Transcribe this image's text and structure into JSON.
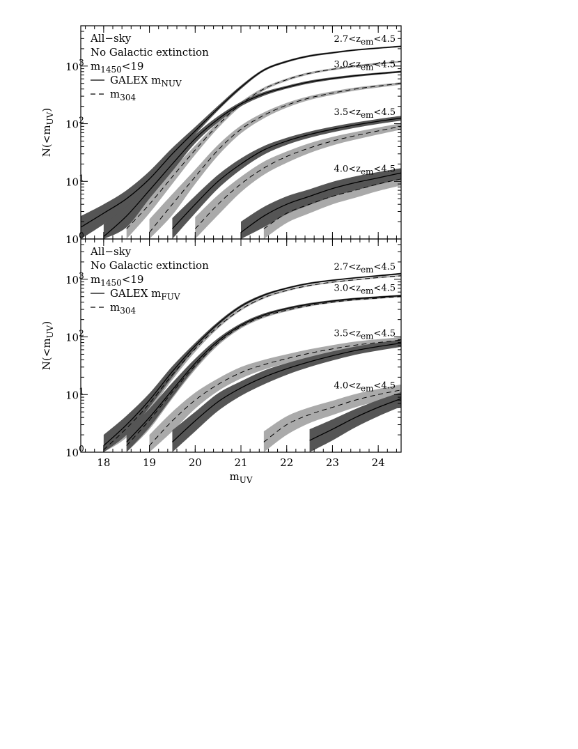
{
  "chart_data": [
    {
      "type": "line",
      "log_y": true,
      "xlim": [
        17.5,
        24.5
      ],
      "ylim": [
        1,
        5000
      ],
      "xticks": [
        18,
        19,
        20,
        21,
        22,
        23,
        24
      ],
      "show_xtick_labels": false,
      "xminor_step": 0.2,
      "yticks": [
        {
          "value": 1,
          "label": "10",
          "exp": "0"
        },
        {
          "value": 10,
          "label": "10",
          "exp": "1"
        },
        {
          "value": 100,
          "label": "10",
          "exp": "2"
        },
        {
          "value": 1000,
          "label": "10",
          "exp": "3"
        }
      ],
      "ylabel": {
        "text": "N(<m",
        "sub": "UV",
        "post": ")"
      },
      "annotations": [
        "All−sky",
        "No Galactic extinction"
      ],
      "cut": {
        "text": "m",
        "sub": "1450",
        "post": "<19"
      },
      "legend": [
        {
          "text": "GALEX m",
          "sub": "NUV",
          "style": "solid"
        },
        {
          "text": "m",
          "sub": "304",
          "style": "dashed"
        }
      ],
      "bins": [
        {
          "pre": "2.7<z",
          "sub": "em",
          "post": "<4.5"
        },
        {
          "pre": "3.0<z",
          "sub": "em",
          "post": "<4.5"
        },
        {
          "pre": "3.5<z",
          "sub": "em",
          "post": "<4.5"
        },
        {
          "pre": "4.0<z",
          "sub": "em",
          "post": "<4.5"
        }
      ],
      "x": [
        17.5,
        18,
        18.5,
        19,
        19.5,
        20,
        20.5,
        21,
        21.5,
        22,
        22.5,
        23,
        23.5,
        24,
        24.5
      ],
      "series": [
        {
          "bin": 0,
          "style": "solid",
          "color": "#000000",
          "band_color": "#555555",
          "values": [
            1.6,
            2.8,
            5,
            11,
            30,
            75,
            185,
            430,
            850,
            1200,
            1500,
            1700,
            1900,
            2050,
            2200
          ],
          "low": [
            1,
            1.8,
            3.5,
            8,
            24,
            65,
            170,
            400,
            810,
            1150,
            1440,
            1640,
            1840,
            1990,
            2130
          ],
          "high": [
            2.5,
            4,
            7,
            15,
            38,
            88,
            205,
            460,
            890,
            1250,
            1560,
            1760,
            1960,
            2110,
            2270
          ]
        },
        {
          "bin": 0,
          "style": "dashed",
          "color": "#000000",
          "band_color": "#aaaaaa",
          "values": [
            null,
            null,
            1.5,
            4,
            12,
            35,
            95,
            220,
            400,
            580,
            750,
            880,
            1000,
            1100,
            1200
          ],
          "low": [
            null,
            null,
            1,
            2.8,
            9,
            29,
            84,
            200,
            375,
            550,
            715,
            845,
            960,
            1060,
            1160
          ],
          "high": [
            null,
            null,
            2.3,
            5.5,
            16,
            42,
            107,
            240,
            425,
            610,
            785,
            915,
            1040,
            1140,
            1240
          ]
        },
        {
          "bin": 1,
          "style": "solid",
          "color": "#000000",
          "band_color": "#555555",
          "values": [
            null,
            1.1,
            2.5,
            7,
            20,
            55,
            120,
            220,
            330,
            430,
            530,
            610,
            680,
            740,
            800
          ],
          "low": [
            null,
            1,
            1.6,
            5,
            15,
            46,
            106,
            200,
            305,
            405,
            500,
            580,
            650,
            710,
            770
          ],
          "high": [
            null,
            1.8,
            3.7,
            9.5,
            26,
            65,
            135,
            240,
            355,
            455,
            560,
            640,
            710,
            770,
            830
          ]
        },
        {
          "bin": 1,
          "style": "dashed",
          "color": "#000000",
          "band_color": "#aaaaaa",
          "values": [
            null,
            null,
            null,
            1.3,
            4,
            12,
            35,
            80,
            140,
            210,
            280,
            340,
            400,
            450,
            500
          ],
          "low": [
            null,
            null,
            null,
            1,
            2.6,
            9,
            28,
            68,
            124,
            190,
            258,
            316,
            375,
            425,
            475
          ],
          "high": [
            null,
            null,
            null,
            2.2,
            6,
            16,
            43,
            93,
            157,
            230,
            302,
            364,
            425,
            475,
            525
          ]
        },
        {
          "bin": 2,
          "style": "solid",
          "color": "#000000",
          "band_color": "#555555",
          "values": [
            null,
            null,
            null,
            null,
            1.5,
            4,
            10,
            20,
            35,
            50,
            65,
            80,
            95,
            110,
            125
          ],
          "low": [
            null,
            null,
            null,
            null,
            1,
            2.8,
            7.5,
            16,
            29,
            43,
            57,
            71,
            85,
            99,
            113
          ],
          "high": [
            null,
            null,
            null,
            null,
            2.3,
            5.6,
            13,
            25,
            41,
            57,
            73,
            89,
            105,
            121,
            137
          ]
        },
        {
          "bin": 2,
          "style": "dashed",
          "color": "#000000",
          "band_color": "#aaaaaa",
          "values": [
            null,
            null,
            null,
            null,
            null,
            1.5,
            4,
            9,
            17,
            27,
            38,
            50,
            62,
            75,
            90
          ],
          "low": [
            null,
            null,
            null,
            null,
            null,
            1,
            2.6,
            6.5,
            13,
            21,
            31,
            42,
            53,
            65,
            79
          ],
          "high": [
            null,
            null,
            null,
            null,
            null,
            2.4,
            5.8,
            12,
            22,
            33,
            46,
            59,
            72,
            86,
            102
          ]
        },
        {
          "bin": 3,
          "style": "solid",
          "color": "#000000",
          "band_color": "#555555",
          "values": [
            null,
            null,
            null,
            null,
            null,
            null,
            null,
            1.3,
            2.5,
            4,
            5.5,
            7.5,
            9.5,
            11.5,
            14
          ],
          "low": [
            null,
            null,
            null,
            null,
            null,
            null,
            null,
            1,
            1.6,
            2.7,
            3.9,
            5.4,
            7,
            8.8,
            11
          ],
          "high": [
            null,
            null,
            null,
            null,
            null,
            null,
            null,
            2,
            3.6,
            5.5,
            7.3,
            9.8,
            12.2,
            14.5,
            17
          ]
        },
        {
          "bin": 3,
          "style": "dashed",
          "color": "#000000",
          "band_color": "#aaaaaa",
          "values": [
            null,
            null,
            null,
            null,
            null,
            null,
            null,
            null,
            1.5,
            2.8,
            4,
            5.5,
            7,
            9,
            11
          ],
          "low": [
            null,
            null,
            null,
            null,
            null,
            null,
            null,
            null,
            1,
            1.9,
            2.8,
            4,
            5.2,
            6.8,
            8.5
          ],
          "high": [
            null,
            null,
            null,
            null,
            null,
            null,
            null,
            null,
            2.2,
            3.8,
            5.3,
            7.1,
            9,
            11.2,
            13.5
          ]
        }
      ]
    },
    {
      "type": "line",
      "log_y": true,
      "xlim": [
        17.5,
        24.5
      ],
      "ylim": [
        1,
        5000
      ],
      "xticks": [
        18,
        19,
        20,
        21,
        22,
        23,
        24
      ],
      "show_xtick_labels": true,
      "xminor_step": 0.2,
      "xlabel": {
        "text": "m",
        "sub": "UV",
        "post": ""
      },
      "yticks": [
        {
          "value": 1,
          "label": "10",
          "exp": "0"
        },
        {
          "value": 10,
          "label": "10",
          "exp": "1"
        },
        {
          "value": 100,
          "label": "10",
          "exp": "2"
        },
        {
          "value": 1000,
          "label": "10",
          "exp": "3"
        }
      ],
      "ylabel": {
        "text": "N(<m",
        "sub": "UV",
        "post": ")"
      },
      "annotations": [
        "All−sky",
        "No Galactic extinction"
      ],
      "cut": {
        "text": "m",
        "sub": "1450",
        "post": "<19"
      },
      "legend": [
        {
          "text": "GALEX m",
          "sub": "FUV",
          "style": "solid"
        },
        {
          "text": "m",
          "sub": "304",
          "style": "dashed"
        }
      ],
      "bins": [
        {
          "pre": "2.7<z",
          "sub": "em",
          "post": "<4.5"
        },
        {
          "pre": "3.0<z",
          "sub": "em",
          "post": "<4.5"
        },
        {
          "pre": "3.5<z",
          "sub": "em",
          "post": "<4.5"
        },
        {
          "pre": "4.0<z",
          "sub": "em",
          "post": "<4.5"
        }
      ],
      "x": [
        17.5,
        18,
        18.5,
        19,
        19.5,
        20,
        20.5,
        21,
        21.5,
        22,
        22.5,
        23,
        23.5,
        24,
        24.5
      ],
      "series": [
        {
          "bin": 0,
          "style": "solid",
          "color": "#000000",
          "band_color": "#555555",
          "values": [
            null,
            1.3,
            3,
            8,
            25,
            70,
            170,
            340,
            530,
            700,
            850,
            960,
            1060,
            1150,
            1250
          ],
          "low": [
            null,
            1,
            2,
            6,
            20,
            62,
            158,
            320,
            505,
            675,
            820,
            930,
            1030,
            1115,
            1210
          ],
          "high": [
            null,
            2,
            4.3,
            10.5,
            31,
            79,
            183,
            360,
            555,
            725,
            880,
            990,
            1090,
            1185,
            1290
          ]
        },
        {
          "bin": 0,
          "style": "dashed",
          "color": "#000000",
          "band_color": "#aaaaaa",
          "values": [
            null,
            1.1,
            2.6,
            7,
            22,
            62,
            150,
            300,
            480,
            640,
            780,
            890,
            980,
            1070,
            1150
          ],
          "low": [
            null,
            1,
            1.8,
            5.2,
            18,
            55,
            140,
            285,
            460,
            615,
            755,
            865,
            955,
            1040,
            1120
          ],
          "high": [
            null,
            1.6,
            3.5,
            9,
            26,
            69,
            160,
            315,
            500,
            665,
            805,
            915,
            1005,
            1100,
            1180
          ]
        },
        {
          "bin": 1,
          "style": "solid",
          "color": "#000000",
          "band_color": "#555555",
          "values": [
            null,
            null,
            1.5,
            4,
            12,
            35,
            85,
            160,
            240,
            310,
            370,
            420,
            460,
            490,
            520
          ],
          "low": [
            null,
            null,
            1,
            2.7,
            9,
            29,
            76,
            148,
            225,
            295,
            353,
            403,
            443,
            473,
            503
          ],
          "high": [
            null,
            null,
            2.3,
            5.7,
            16,
            42,
            95,
            172,
            255,
            325,
            387,
            437,
            477,
            507,
            537
          ]
        },
        {
          "bin": 1,
          "style": "dashed",
          "color": "#000000",
          "band_color": "#aaaaaa",
          "values": [
            null,
            null,
            1.3,
            3.6,
            11,
            32,
            78,
            150,
            225,
            290,
            350,
            400,
            440,
            470,
            500
          ],
          "low": [
            null,
            null,
            1,
            2.5,
            8.5,
            27,
            71,
            140,
            213,
            277,
            337,
            387,
            427,
            457,
            487
          ],
          "high": [
            null,
            null,
            1.8,
            4.8,
            13.5,
            37,
            85,
            160,
            237,
            303,
            363,
            413,
            453,
            483,
            513
          ]
        },
        {
          "bin": 2,
          "style": "solid",
          "color": "#000000",
          "band_color": "#555555",
          "values": [
            null,
            null,
            null,
            null,
            1.5,
            3.5,
            7.5,
            13,
            20,
            28,
            37,
            47,
            58,
            68,
            78
          ],
          "low": [
            null,
            null,
            null,
            null,
            1,
            2.3,
            5.2,
            9.5,
            15,
            22,
            30,
            39,
            49,
            58,
            67
          ],
          "high": [
            null,
            null,
            null,
            null,
            2.4,
            5,
            10.5,
            17,
            26,
            35,
            45,
            56,
            68,
            79,
            90
          ]
        },
        {
          "bin": 2,
          "style": "dashed",
          "color": "#000000",
          "band_color": "#aaaaaa",
          "values": [
            null,
            null,
            null,
            1.3,
            3.5,
            8,
            15,
            24,
            33,
            42,
            52,
            62,
            72,
            80,
            88
          ],
          "low": [
            null,
            null,
            null,
            1,
            2.3,
            5.7,
            11.5,
            19,
            27,
            35,
            44,
            53,
            62,
            70,
            78
          ],
          "high": [
            null,
            null,
            null,
            2,
            5,
            10.8,
            19,
            30,
            40,
            50,
            61,
            72,
            83,
            91,
            99
          ]
        },
        {
          "bin": 3,
          "style": "solid",
          "color": "#000000",
          "band_color": "#555555",
          "values": [
            null,
            null,
            null,
            null,
            null,
            null,
            null,
            null,
            null,
            null,
            1.6,
            2.5,
            4,
            6,
            8.5
          ],
          "low": [
            null,
            null,
            null,
            null,
            null,
            null,
            null,
            null,
            null,
            null,
            1,
            1.6,
            2.7,
            4.2,
            6.2
          ],
          "high": [
            null,
            null,
            null,
            null,
            null,
            null,
            null,
            null,
            null,
            null,
            2.5,
            3.7,
            5.6,
            8,
            11
          ]
        },
        {
          "bin": 3,
          "style": "dashed",
          "color": "#000000",
          "band_color": "#aaaaaa",
          "values": [
            null,
            null,
            null,
            null,
            null,
            null,
            null,
            null,
            1.5,
            3,
            4.5,
            6,
            8,
            10,
            12
          ],
          "low": [
            null,
            null,
            null,
            null,
            null,
            null,
            null,
            null,
            1,
            2,
            3.2,
            4.4,
            6,
            7.7,
            9.4
          ],
          "high": [
            null,
            null,
            null,
            null,
            null,
            null,
            null,
            null,
            2.3,
            4.2,
            6,
            7.8,
            10.2,
            12.5,
            15
          ]
        }
      ]
    }
  ]
}
